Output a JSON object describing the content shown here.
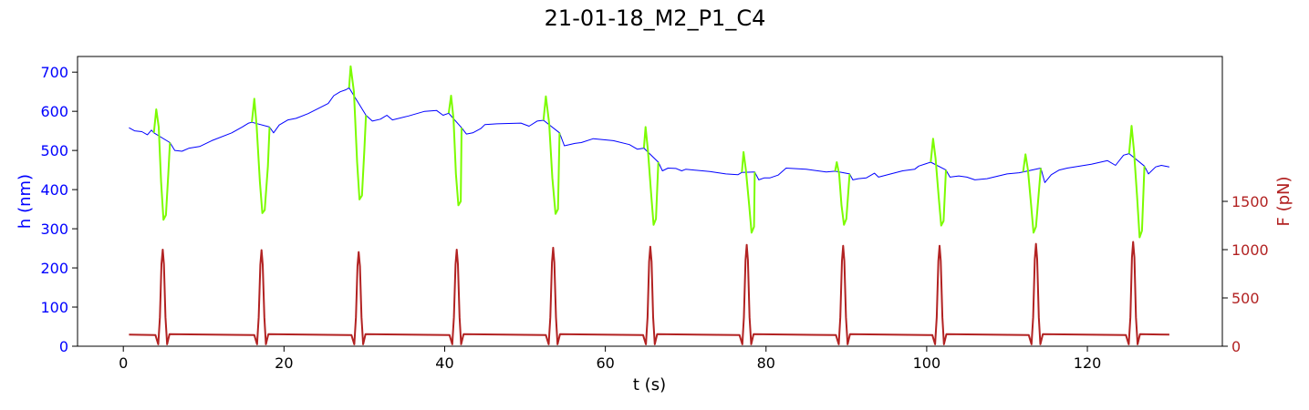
{
  "chart_data": {
    "type": "line",
    "title": "21-01-18_M2_P1_C4",
    "xlabel": "t (s)",
    "ylabel_left": "h (nm)",
    "ylabel_right": "F (pN)",
    "xlim": [
      -5.7,
      136.8
    ],
    "ylim_left": [
      0,
      740
    ],
    "ylim_right": [
      0,
      3000
    ],
    "x_ticks": [
      0,
      20,
      40,
      60,
      80,
      100,
      120
    ],
    "y_ticks_left": [
      0,
      100,
      200,
      300,
      400,
      500,
      600,
      700
    ],
    "y_ticks_right": [
      0,
      500,
      1000,
      1500
    ],
    "grid": false,
    "colors": {
      "h_line": "#0000ff",
      "h_highlight": "#7cfc00",
      "force": "#b22222",
      "left_axis": "#0000ff",
      "right_axis": "#b22222"
    },
    "series": [
      {
        "axis": "left",
        "color": "#0000ff",
        "points": [
          [
            0.7,
            558
          ],
          [
            1.4,
            550
          ],
          [
            2.3,
            548
          ],
          [
            3.0,
            540
          ],
          [
            3.5,
            552
          ],
          [
            3.8,
            545
          ],
          [
            5.8,
            520
          ],
          [
            6.4,
            500
          ],
          [
            7.3,
            498
          ],
          [
            8.2,
            506
          ],
          [
            9.5,
            510
          ],
          [
            11.0,
            525
          ],
          [
            13.5,
            545
          ],
          [
            14.8,
            560
          ],
          [
            15.6,
            570
          ],
          [
            16.0,
            572
          ],
          [
            18.2,
            560
          ],
          [
            18.7,
            545
          ],
          [
            19.4,
            565
          ],
          [
            20.5,
            578
          ],
          [
            21.5,
            582
          ],
          [
            23.0,
            594
          ],
          [
            25.5,
            620
          ],
          [
            26.2,
            640
          ],
          [
            27.0,
            650
          ],
          [
            27.7,
            655
          ],
          [
            28.1,
            660
          ],
          [
            30.2,
            590
          ],
          [
            31.0,
            575
          ],
          [
            32.0,
            580
          ],
          [
            32.8,
            590
          ],
          [
            33.5,
            578
          ],
          [
            35.5,
            588
          ],
          [
            37.5,
            600
          ],
          [
            39.0,
            602
          ],
          [
            39.8,
            590
          ],
          [
            40.5,
            595
          ],
          [
            42.1,
            558
          ],
          [
            42.7,
            542
          ],
          [
            43.5,
            545
          ],
          [
            44.5,
            556
          ],
          [
            45.0,
            566
          ],
          [
            46.5,
            568
          ],
          [
            49.5,
            570
          ],
          [
            50.5,
            562
          ],
          [
            51.5,
            575
          ],
          [
            52.3,
            577
          ],
          [
            54.3,
            545
          ],
          [
            54.9,
            512
          ],
          [
            56.2,
            518
          ],
          [
            57.0,
            520
          ],
          [
            58.5,
            530
          ],
          [
            61.0,
            525
          ],
          [
            63.0,
            515
          ],
          [
            64.0,
            503
          ],
          [
            64.8,
            506
          ],
          [
            66.6,
            470
          ],
          [
            67.1,
            448
          ],
          [
            67.8,
            455
          ],
          [
            68.8,
            454
          ],
          [
            69.5,
            448
          ],
          [
            70.0,
            452
          ],
          [
            73.0,
            446
          ],
          [
            75.0,
            440
          ],
          [
            76.5,
            438
          ],
          [
            77.0,
            444
          ],
          [
            78.6,
            445
          ],
          [
            79.1,
            425
          ],
          [
            79.8,
            430
          ],
          [
            80.5,
            430
          ],
          [
            81.5,
            437
          ],
          [
            82.5,
            455
          ],
          [
            85.0,
            452
          ],
          [
            87.5,
            445
          ],
          [
            88.6,
            447
          ],
          [
            90.4,
            440
          ],
          [
            90.8,
            425
          ],
          [
            91.5,
            428
          ],
          [
            92.5,
            430
          ],
          [
            93.5,
            442
          ],
          [
            94.0,
            432
          ],
          [
            97.0,
            448
          ],
          [
            98.5,
            452
          ],
          [
            99.0,
            460
          ],
          [
            100.5,
            470
          ],
          [
            102.4,
            450
          ],
          [
            102.9,
            432
          ],
          [
            104.0,
            435
          ],
          [
            105.0,
            432
          ],
          [
            106.0,
            425
          ],
          [
            107.5,
            428
          ],
          [
            110.0,
            440
          ],
          [
            111.5,
            443
          ],
          [
            112.0,
            445
          ],
          [
            114.2,
            455
          ],
          [
            114.7,
            418
          ],
          [
            115.5,
            438
          ],
          [
            116.5,
            450
          ],
          [
            117.5,
            455
          ],
          [
            120.5,
            465
          ],
          [
            122.5,
            474
          ],
          [
            123.5,
            462
          ],
          [
            124.5,
            488
          ],
          [
            125.2,
            492
          ],
          [
            127.1,
            460
          ],
          [
            127.6,
            440
          ],
          [
            128.5,
            458
          ],
          [
            129.2,
            462
          ],
          [
            130.2,
            458
          ]
        ]
      },
      {
        "axis": "left",
        "color": "#7cfc00",
        "points": [
          [
            3.8,
            545
          ],
          [
            4.1,
            605
          ],
          [
            4.4,
            560
          ],
          [
            4.7,
            420
          ],
          [
            5.0,
            323
          ],
          [
            5.3,
            335
          ],
          [
            5.6,
            440
          ],
          [
            5.8,
            520
          ],
          [
            16.0,
            572
          ],
          [
            16.3,
            632
          ],
          [
            16.6,
            560
          ],
          [
            17.0,
            420
          ],
          [
            17.3,
            340
          ],
          [
            17.6,
            348
          ],
          [
            18.0,
            460
          ],
          [
            18.2,
            560
          ],
          [
            28.1,
            660
          ],
          [
            28.3,
            715
          ],
          [
            28.7,
            650
          ],
          [
            29.1,
            470
          ],
          [
            29.4,
            375
          ],
          [
            29.7,
            385
          ],
          [
            30.0,
            500
          ],
          [
            30.2,
            590
          ],
          [
            40.5,
            595
          ],
          [
            40.8,
            640
          ],
          [
            41.1,
            580
          ],
          [
            41.4,
            440
          ],
          [
            41.7,
            360
          ],
          [
            42.0,
            370
          ],
          [
            42.1,
            558
          ],
          [
            52.3,
            577
          ],
          [
            52.6,
            638
          ],
          [
            53.0,
            570
          ],
          [
            53.4,
            430
          ],
          [
            53.8,
            338
          ],
          [
            54.1,
            350
          ],
          [
            54.3,
            545
          ],
          [
            64.8,
            506
          ],
          [
            65.0,
            560
          ],
          [
            65.3,
            500
          ],
          [
            65.7,
            390
          ],
          [
            66.0,
            310
          ],
          [
            66.3,
            325
          ],
          [
            66.6,
            470
          ],
          [
            77.0,
            444
          ],
          [
            77.2,
            496
          ],
          [
            77.5,
            450
          ],
          [
            77.9,
            360
          ],
          [
            78.2,
            290
          ],
          [
            78.5,
            305
          ],
          [
            78.6,
            445
          ],
          [
            88.6,
            447
          ],
          [
            88.8,
            470
          ],
          [
            89.1,
            440
          ],
          [
            89.4,
            360
          ],
          [
            89.7,
            310
          ],
          [
            90.0,
            325
          ],
          [
            90.4,
            440
          ],
          [
            100.5,
            470
          ],
          [
            100.8,
            530
          ],
          [
            101.1,
            480
          ],
          [
            101.5,
            380
          ],
          [
            101.8,
            308
          ],
          [
            102.1,
            320
          ],
          [
            102.4,
            450
          ],
          [
            112.0,
            445
          ],
          [
            112.3,
            490
          ],
          [
            112.6,
            450
          ],
          [
            113.0,
            360
          ],
          [
            113.3,
            290
          ],
          [
            113.6,
            305
          ],
          [
            114.2,
            455
          ],
          [
            125.2,
            492
          ],
          [
            125.5,
            563
          ],
          [
            125.8,
            500
          ],
          [
            126.2,
            380
          ],
          [
            126.5,
            278
          ],
          [
            126.8,
            295
          ],
          [
            127.1,
            460
          ]
        ]
      },
      {
        "axis": "right",
        "color": "#b22222",
        "name": "",
        "baseline": 120,
        "pulse_peaks": [
          [
            4.9,
            1000
          ],
          [
            17.2,
            995
          ],
          [
            29.3,
            975
          ],
          [
            41.5,
            1000
          ],
          [
            53.5,
            1020
          ],
          [
            65.6,
            1030
          ],
          [
            77.6,
            1050
          ],
          [
            89.6,
            1040
          ],
          [
            101.6,
            1040
          ],
          [
            113.6,
            1060
          ],
          [
            125.7,
            1080
          ]
        ]
      }
    ]
  }
}
